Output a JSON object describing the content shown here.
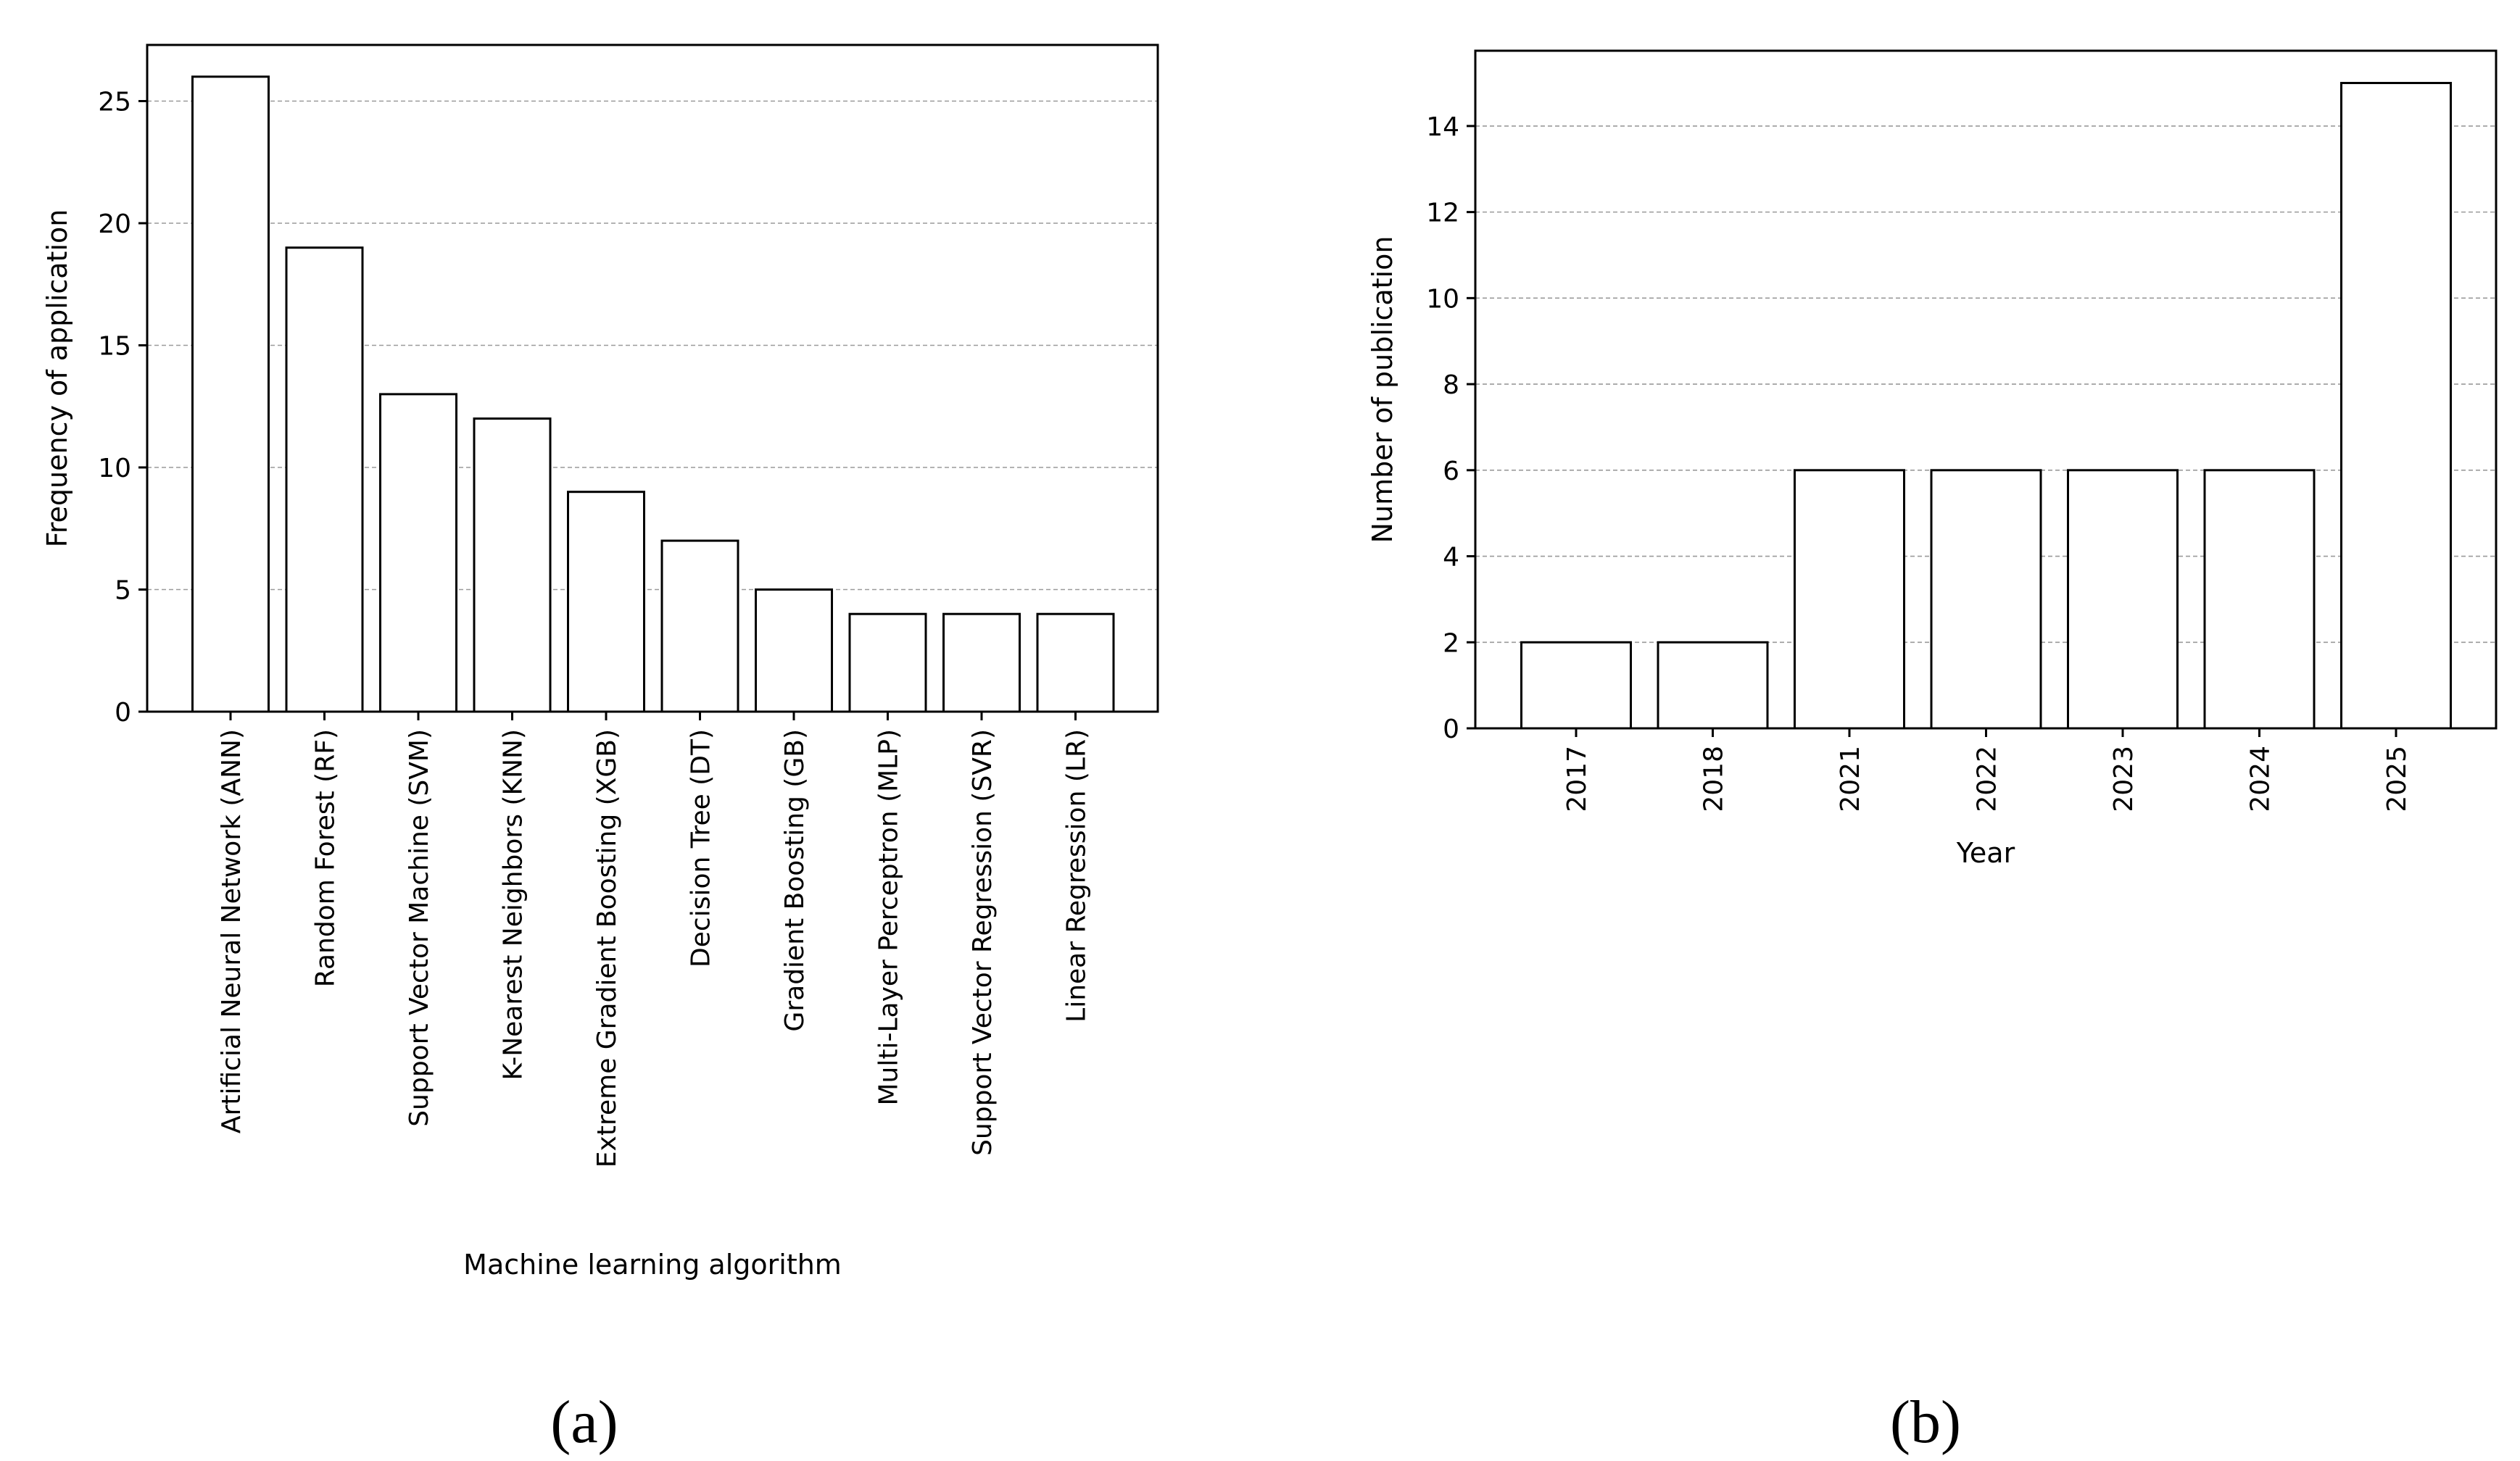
{
  "chart_data": [
    {
      "type": "bar",
      "panel_label": "(a)",
      "xlabel": "Machine learning algorithm",
      "ylabel": "Frequency of application",
      "categories": [
        "Artificial Neural Network (ANN)",
        "Random Forest (RF)",
        "Support Vector Machine (SVM)",
        "K-Nearest Neighbors (KNN)",
        "Extreme Gradient Boosting (XGB)",
        "Decision Tree (DT)",
        "Gradient Boosting (GB)",
        "Multi-Layer Perceptron (MLP)",
        "Support Vector Regression (SVR)",
        "Linear Regression (LR)"
      ],
      "values": [
        26,
        19,
        13,
        12,
        9,
        7,
        5,
        4,
        4,
        4
      ],
      "yticks": [
        0,
        5,
        10,
        15,
        20,
        25
      ],
      "ylim": [
        0,
        27.3
      ],
      "grid": "y-dashed",
      "bar_fill": "#ffffff",
      "bar_edge": "#000000"
    },
    {
      "type": "bar",
      "panel_label": "(b)",
      "xlabel": "Year",
      "ylabel": "Number of publication",
      "categories": [
        "2017",
        "2018",
        "2021",
        "2022",
        "2023",
        "2024",
        "2025"
      ],
      "values": [
        2,
        2,
        6,
        6,
        6,
        6,
        15
      ],
      "yticks": [
        0,
        2,
        4,
        6,
        8,
        10,
        12,
        14
      ],
      "ylim": [
        0,
        15.75
      ],
      "grid": "y-dashed",
      "bar_fill": "#ffffff",
      "bar_edge": "#000000"
    }
  ]
}
